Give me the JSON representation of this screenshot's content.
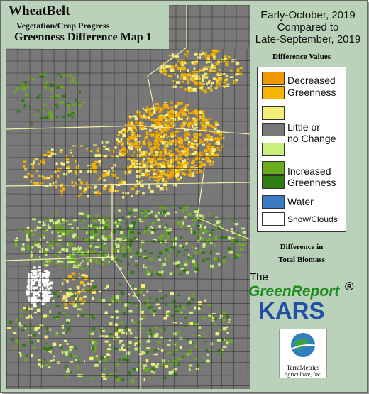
{
  "header": {
    "title": "WheatBelt",
    "subtitle": "Vegetation/Crop Progress",
    "map_title": "Greenness Difference Map 1"
  },
  "period": {
    "line1": "Early-October, 2019",
    "line2": "Compared to",
    "line3": "Late-September, 2019"
  },
  "legend": {
    "title": "Difference Values",
    "colors": [
      "#f09a00",
      "#f5b400",
      "#f5ef7a",
      "#787878",
      "#c9ef7d",
      "#6aab1f",
      "#2f7d12",
      "#3b7bc4",
      "#ffffff"
    ],
    "labels": {
      "decreased_1": "Decreased",
      "decreased_2": "Greenness",
      "little_1": "Little or",
      "little_2": "no Change",
      "increased_1": "Increased",
      "increased_2": "Greenness",
      "water": "Water",
      "snow": "Snow/Clouds"
    }
  },
  "biomass": {
    "line1": "Difference in",
    "line2": "Total Biomass"
  },
  "brand": {
    "the": "The",
    "greenreport": "GreenReport",
    "registered": "®",
    "kars": "KARS",
    "company": "TerraMetrics",
    "company_sub": "Agriculture, Inc."
  }
}
